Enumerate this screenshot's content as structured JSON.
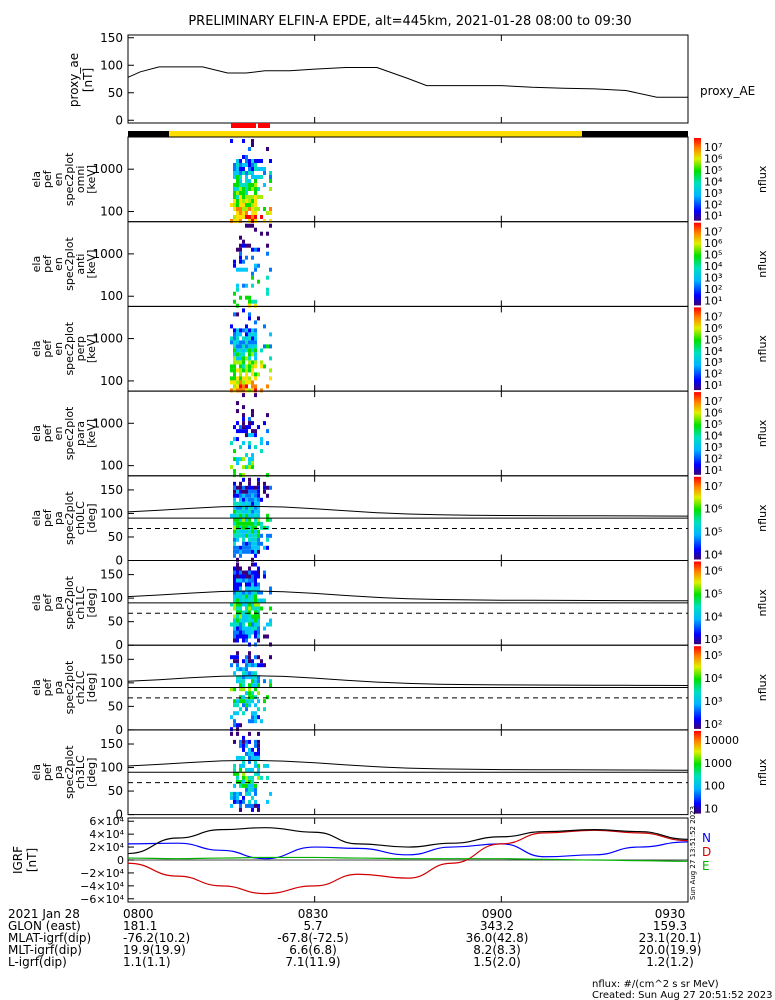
{
  "title": "PRELIMINARY ELFIN-A EPDE, alt=445km, 2021-01-28 08:00 to 09:30",
  "proxy_ae": {
    "ylabel": [
      "proxy_ae",
      "[nT]"
    ],
    "ticks": [
      "150",
      "100",
      "50",
      "0"
    ],
    "ylim": [
      -5,
      155
    ],
    "legend": "proxy_AE",
    "x": [
      0,
      2,
      5,
      8,
      12,
      16,
      19,
      22,
      26,
      30,
      35,
      40,
      45,
      48,
      52,
      55,
      60,
      65,
      70,
      75,
      80,
      85,
      90
    ],
    "y": [
      78,
      88,
      97,
      97,
      97,
      86,
      86,
      90,
      90,
      93,
      96,
      96,
      76,
      63,
      63,
      63,
      63,
      60,
      58,
      57,
      54,
      42,
      42
    ]
  },
  "panels": [
    {
      "label": [
        "ela",
        "pef",
        "en",
        "spec2plot",
        "omni",
        "[keV]"
      ],
      "ticks": [
        "1000",
        "100"
      ],
      "cbar_ticks": [
        "10⁷",
        "10⁶",
        "10⁵",
        "10⁴",
        "10³",
        "10²",
        "10¹"
      ],
      "cbar_label": "nflux"
    },
    {
      "label": [
        "ela",
        "pef",
        "en",
        "spec2plot",
        "anti",
        "[keV]"
      ],
      "ticks": [
        "1000",
        "100"
      ],
      "cbar_ticks": [
        "10⁷",
        "10⁶",
        "10⁵",
        "10⁴",
        "10³",
        "10²",
        "10¹"
      ],
      "cbar_label": "nflux"
    },
    {
      "label": [
        "ela",
        "pef",
        "en",
        "spec2plot",
        "perp",
        "[keV]"
      ],
      "ticks": [
        "1000",
        "100"
      ],
      "cbar_ticks": [
        "10⁷",
        "10⁶",
        "10⁵",
        "10⁴",
        "10³",
        "10²",
        "10¹"
      ],
      "cbar_label": "nflux"
    },
    {
      "label": [
        "ela",
        "pef",
        "en",
        "spec2plot",
        "para",
        "[keV]"
      ],
      "ticks": [
        "1000",
        "100"
      ],
      "cbar_ticks": [
        "10⁷",
        "10⁶",
        "10⁵",
        "10⁴",
        "10³",
        "10²",
        "10¹"
      ],
      "cbar_label": "nflux"
    },
    {
      "label": [
        "ela",
        "pef",
        "pa",
        "spec2plot",
        "ch0LC",
        "[deg]"
      ],
      "ticks": [
        "150",
        "100",
        "50",
        "0"
      ],
      "cbar_ticks": [
        "10⁷",
        "10⁶",
        "10⁵",
        "10⁴"
      ],
      "cbar_label": "nflux"
    },
    {
      "label": [
        "ela",
        "pef",
        "pa",
        "spec2plot",
        "ch1LC",
        "[deg]"
      ],
      "ticks": [
        "150",
        "100",
        "50",
        "0"
      ],
      "cbar_ticks": [
        "10⁶",
        "10⁵",
        "10⁴",
        "10³"
      ],
      "cbar_label": "nflux"
    },
    {
      "label": [
        "ela",
        "pef",
        "pa",
        "spec2plot",
        "ch2LC",
        "[deg]"
      ],
      "ticks": [
        "150",
        "100",
        "50",
        "0"
      ],
      "cbar_ticks": [
        "10⁵",
        "10⁴",
        "10³",
        "10²"
      ],
      "cbar_label": "nflux"
    },
    {
      "label": [
        "ela",
        "pef",
        "pa",
        "spec2plot",
        "ch3LC",
        "[deg]"
      ],
      "ticks": [
        "150",
        "100",
        "50",
        "0"
      ],
      "cbar_ticks": [
        "10000",
        "1000",
        "100",
        "10"
      ],
      "cbar_label": "nflux"
    }
  ],
  "igrf": {
    "ylabel": [
      "IGRF",
      "[nT]"
    ],
    "ticks": [
      "6×10⁴",
      "4×10⁴",
      "2×10⁴",
      "0",
      "−2×10⁴",
      "−4×10⁴",
      "−6×10⁴"
    ],
    "legend": [
      "N",
      "D",
      "E"
    ],
    "legend_colors": [
      "#0000ff",
      "#d00000",
      "#00b000"
    ],
    "side_text": "Sun Aug 27 13:51:52 2023"
  },
  "chart_data": {
    "type": "line",
    "title": "PRELIMINARY ELFIN-A EPDE, alt=445km, 2021-01-28 08:00 to 09:30",
    "x_ticks": [
      "0800",
      "0830",
      "0900",
      "0930"
    ],
    "proxy_ae": {
      "x_minutes": [
        0,
        2,
        5,
        8,
        12,
        16,
        19,
        22,
        26,
        30,
        35,
        40,
        45,
        48,
        52,
        55,
        60,
        65,
        70,
        75,
        80,
        85,
        90
      ],
      "values": [
        78,
        88,
        97,
        97,
        97,
        86,
        86,
        90,
        90,
        93,
        96,
        96,
        76,
        63,
        63,
        63,
        63,
        60,
        58,
        57,
        54,
        42,
        42
      ]
    },
    "igrf": {
      "x_minutes": [
        0,
        8,
        15,
        22,
        30,
        37,
        45,
        52,
        60,
        67,
        75,
        82,
        90
      ],
      "series": [
        {
          "name": "N",
          "color": "#0000ff",
          "values": [
            25000,
            26000,
            15000,
            2000,
            20000,
            18000,
            8000,
            20000,
            25000,
            5000,
            8000,
            20000,
            28000
          ]
        },
        {
          "name": "D",
          "color": "#d00000",
          "values": [
            -5000,
            -25000,
            -40000,
            -52000,
            -40000,
            -22000,
            -28000,
            -5000,
            25000,
            42000,
            46000,
            42000,
            30000
          ]
        },
        {
          "name": "E",
          "color": "#00b000",
          "values": [
            3000,
            2000,
            3000,
            4000,
            4000,
            3000,
            2000,
            2000,
            2000,
            1000,
            0,
            -1000,
            -2000
          ]
        },
        {
          "name": "",
          "color": "#000000",
          "values": [
            10000,
            34000,
            47000,
            50000,
            43000,
            25000,
            20000,
            26000,
            36000,
            44000,
            47000,
            44000,
            32000
          ]
        }
      ]
    }
  },
  "footer": {
    "rows": [
      {
        "label": "2021 Jan 28",
        "values": [
          "0800",
          "0830",
          "0900",
          "0930"
        ]
      },
      {
        "label": "GLON (east)",
        "values": [
          "181.1",
          "5.7",
          "343.2",
          "159.3"
        ]
      },
      {
        "label": "MLAT-igrf(dip)",
        "values": [
          "-76.2(10.2)",
          "-67.8(-72.5)",
          "36.0(42.8)",
          "23.1(20.1)"
        ]
      },
      {
        "label": "MLT-igrf(dip)",
        "values": [
          "19.9(19.9)",
          "6.6(6.8)",
          "8.2(8.3)",
          "20.0(19.9)"
        ]
      },
      {
        "label": "L-igrf(dip)",
        "values": [
          "1.1(1.1)",
          "7.1(11.9)",
          "1.5(2.0)",
          "1.2(1.2)"
        ]
      }
    ],
    "note1": "nflux: #/(cm^2 s sr MeV)",
    "note2": "Created: Sun Aug 27 20:51:52 2023"
  }
}
